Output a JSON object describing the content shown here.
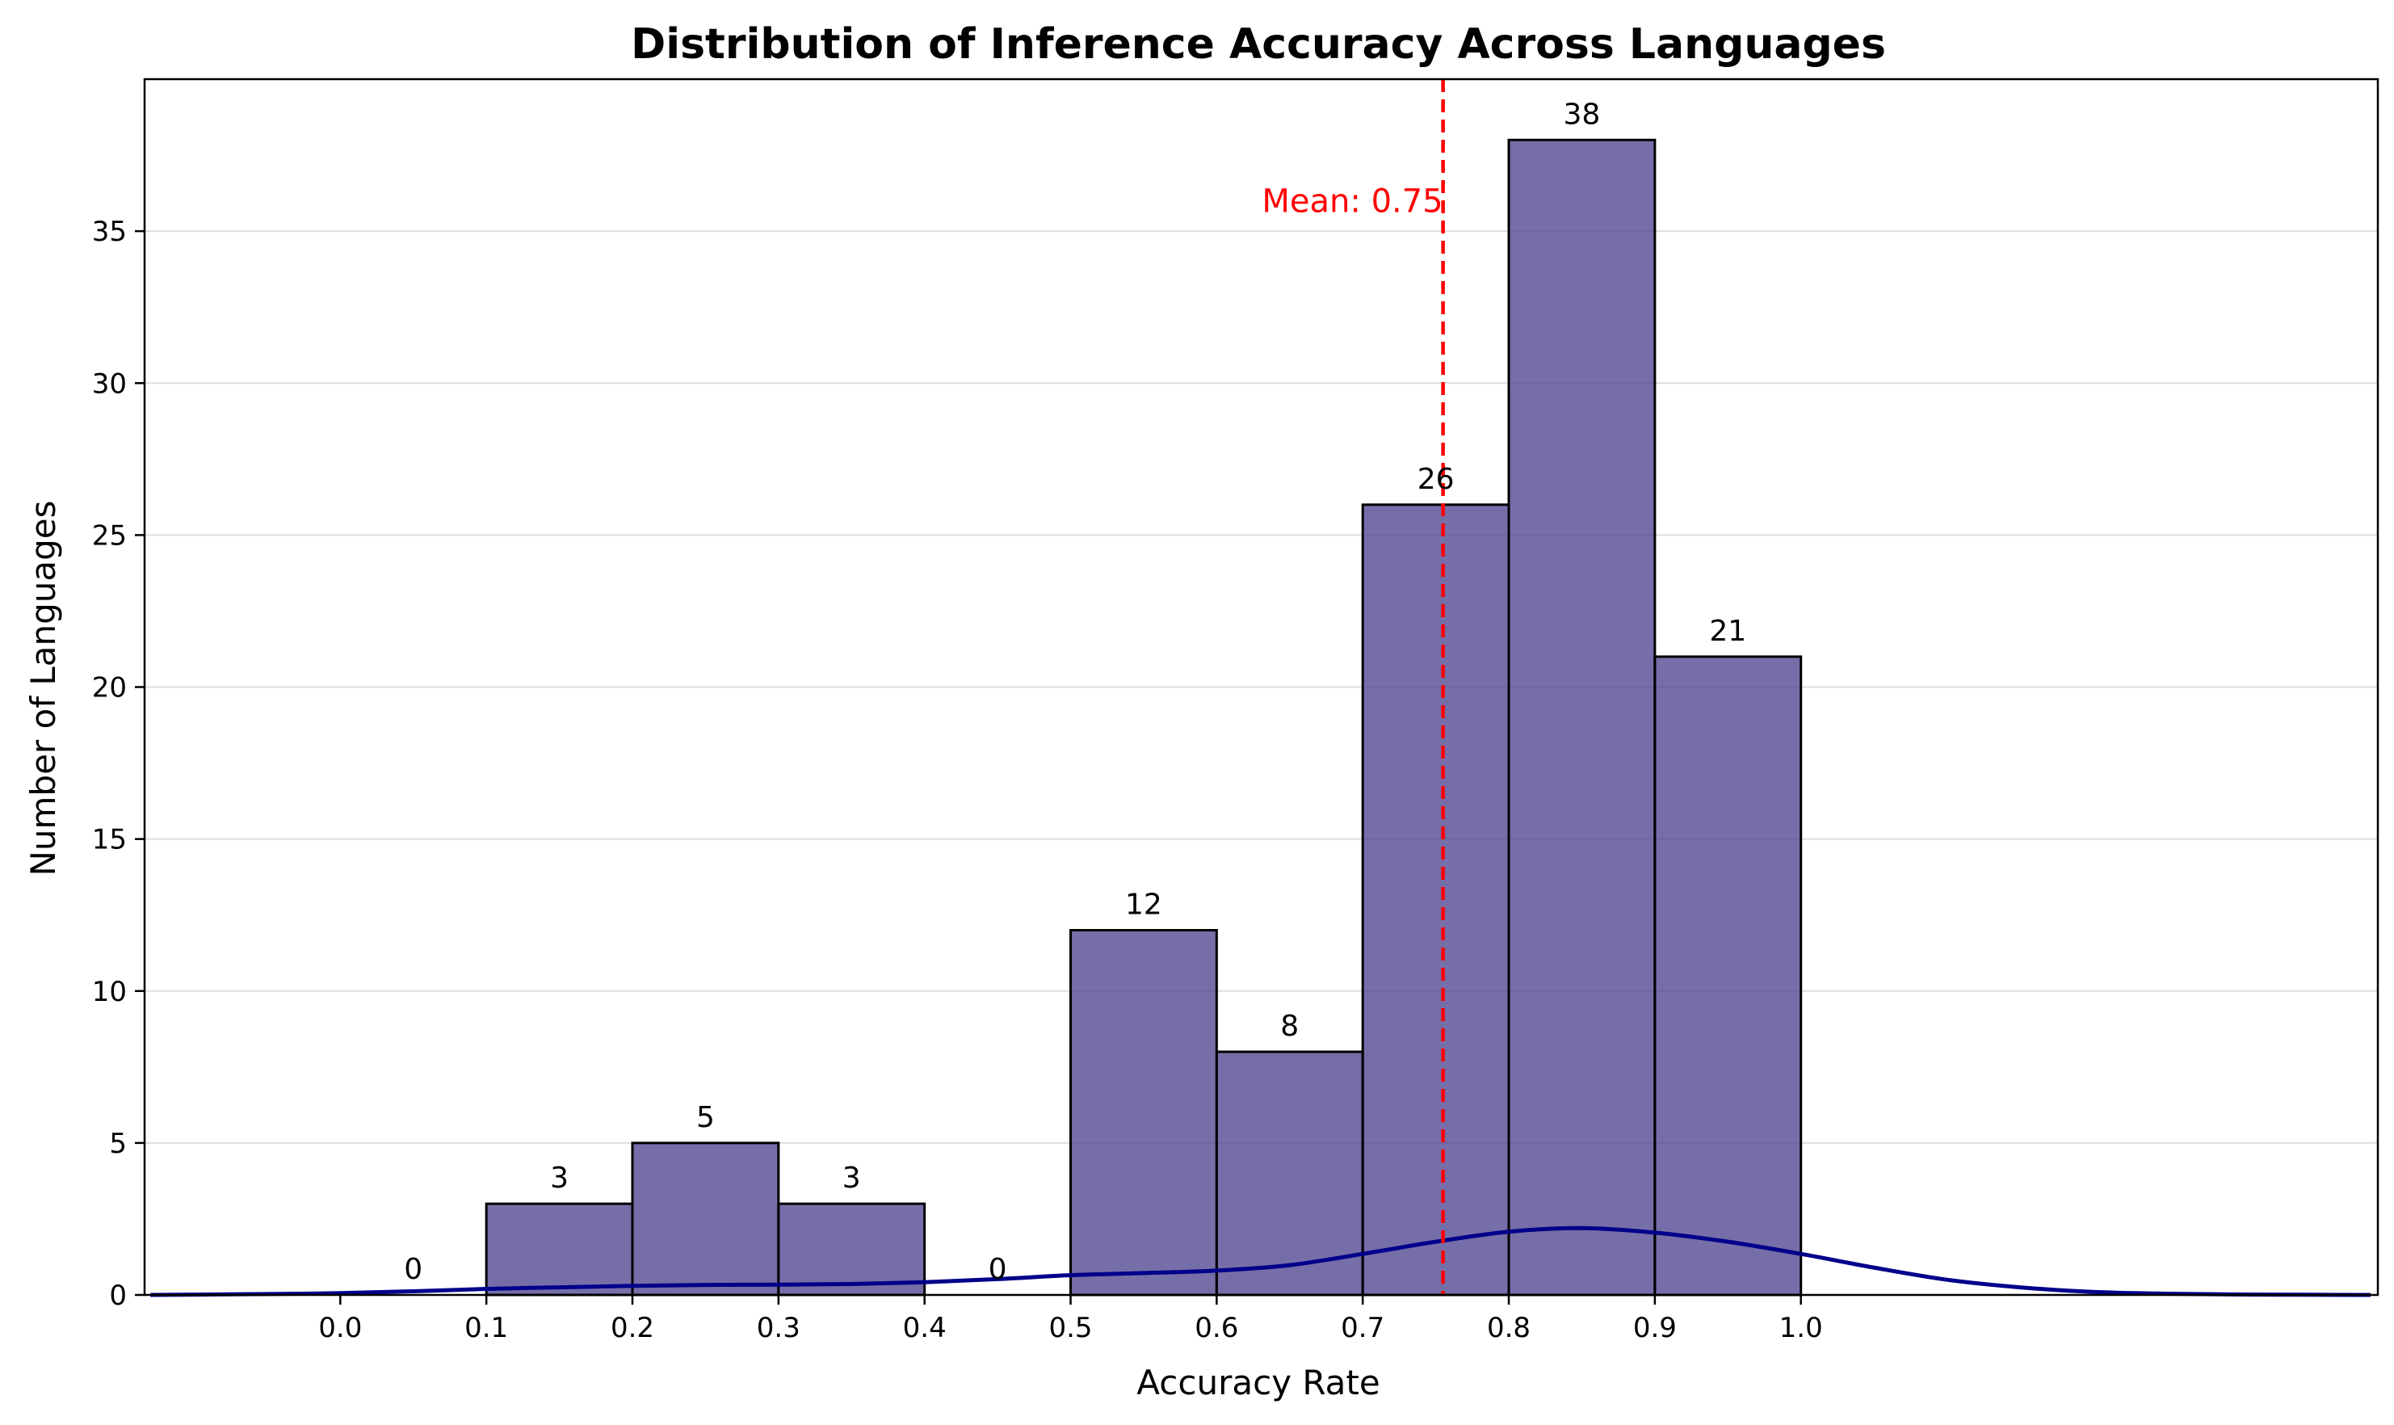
{
  "chart_data": {
    "type": "bar",
    "title": "Distribution of Inference Accuracy Across Languages",
    "xlabel": "Accuracy Rate",
    "ylabel": "Number of Languages",
    "xlim": [
      -0.134,
      1.395
    ],
    "ylim": [
      0,
      40
    ],
    "x_ticks": [
      0.0,
      0.1,
      0.2,
      0.3,
      0.4,
      0.5,
      0.6,
      0.7,
      0.8,
      0.9,
      1.0
    ],
    "x_tick_labels": [
      "0.0",
      "0.1",
      "0.2",
      "0.3",
      "0.4",
      "0.5",
      "0.6",
      "0.7",
      "0.8",
      "0.9",
      "1.0"
    ],
    "y_ticks": [
      0,
      5,
      10,
      15,
      20,
      25,
      30,
      35
    ],
    "y_tick_labels": [
      "0",
      "5",
      "10",
      "15",
      "20",
      "25",
      "30",
      "35"
    ],
    "grid": "horizontal",
    "bins": [
      {
        "start": 0.0,
        "end": 0.1,
        "count": 0,
        "label": "0"
      },
      {
        "start": 0.1,
        "end": 0.2,
        "count": 3,
        "label": "3"
      },
      {
        "start": 0.2,
        "end": 0.3,
        "count": 5,
        "label": "5"
      },
      {
        "start": 0.3,
        "end": 0.4,
        "count": 3,
        "label": "3"
      },
      {
        "start": 0.4,
        "end": 0.5,
        "count": 0,
        "label": "0"
      },
      {
        "start": 0.5,
        "end": 0.6,
        "count": 12,
        "label": "12"
      },
      {
        "start": 0.6,
        "end": 0.7,
        "count": 8,
        "label": "8"
      },
      {
        "start": 0.7,
        "end": 0.8,
        "count": 26,
        "label": "26"
      },
      {
        "start": 0.8,
        "end": 0.9,
        "count": 38,
        "label": "38"
      },
      {
        "start": 0.9,
        "end": 1.0,
        "count": 21,
        "label": "21"
      }
    ],
    "kde_curve": {
      "x": [
        -0.13,
        -0.05,
        0.0,
        0.05,
        0.1,
        0.15,
        0.2,
        0.25,
        0.3,
        0.35,
        0.4,
        0.45,
        0.5,
        0.55,
        0.6,
        0.65,
        0.7,
        0.75,
        0.8,
        0.85,
        0.9,
        0.95,
        1.0,
        1.05,
        1.1,
        1.15,
        1.2,
        1.25,
        1.3,
        1.35,
        1.39
      ],
      "y": [
        0.0,
        0.03,
        0.06,
        0.12,
        0.2,
        0.25,
        0.3,
        0.33,
        0.34,
        0.36,
        0.42,
        0.52,
        0.65,
        0.72,
        0.8,
        0.98,
        1.35,
        1.75,
        2.08,
        2.2,
        2.05,
        1.75,
        1.35,
        0.9,
        0.5,
        0.25,
        0.1,
        0.04,
        0.015,
        0.005,
        0.0
      ]
    },
    "mean": {
      "value": 0.755,
      "label": "Mean: 0.75"
    },
    "colors": {
      "bar_fill": "#483D8B",
      "bar_edge": "#000000",
      "kde_line": "#00008B",
      "mean_line": "#FF0000",
      "grid": "#dddddd"
    }
  }
}
